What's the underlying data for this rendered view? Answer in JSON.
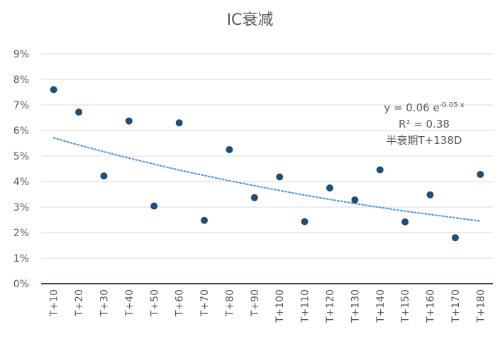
{
  "chart_data": {
    "type": "scatter",
    "title": "IC衰减",
    "categories": [
      "T+10",
      "T+20",
      "T+30",
      "T+40",
      "T+50",
      "T+60",
      "T+70",
      "T+80",
      "T+90",
      "T+100",
      "T+110",
      "T+120",
      "T+130",
      "T+140",
      "T+150",
      "T+160",
      "T+170",
      "T+180"
    ],
    "values": [
      7.6,
      6.72,
      4.22,
      6.37,
      3.04,
      6.3,
      2.48,
      5.25,
      3.37,
      4.18,
      2.43,
      3.75,
      3.28,
      4.46,
      2.42,
      3.48,
      1.8,
      4.28
    ],
    "ylim": [
      0,
      9
    ],
    "yticks": [
      0,
      1,
      2,
      3,
      4,
      5,
      6,
      7,
      8,
      9
    ],
    "y_tick_suffix": "%",
    "grid": true,
    "trendline": {
      "type": "exponential",
      "style": "dotted",
      "values": [
        5.71,
        5.43,
        5.17,
        4.92,
        4.68,
        4.45,
        4.24,
        4.03,
        3.84,
        3.65,
        3.47,
        3.3,
        3.14,
        2.99,
        2.84,
        2.71,
        2.58,
        2.45
      ],
      "equation": "y = 0.06 e",
      "exponent": "-0.05 x",
      "r_squared": "R² = 0.38",
      "half_life": "半衰期T+138D"
    },
    "colors": {
      "points": "#1f4e79",
      "trendline": "#5b9bd5",
      "grid": "#d9d9d9",
      "axis": "#1f4e79",
      "text": "#595959"
    }
  }
}
